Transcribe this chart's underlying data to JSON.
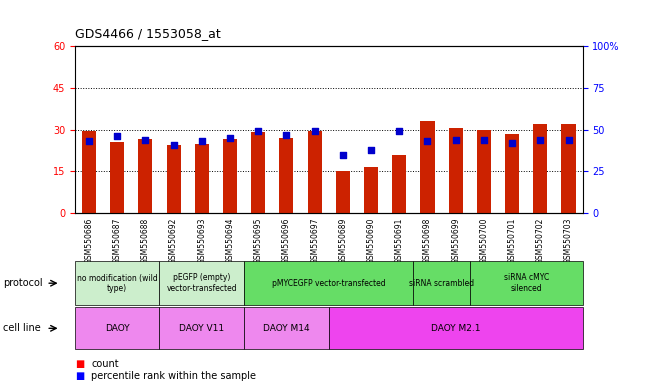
{
  "title": "GDS4466 / 1553058_at",
  "samples": [
    "GSM550686",
    "GSM550687",
    "GSM550688",
    "GSM550692",
    "GSM550693",
    "GSM550694",
    "GSM550695",
    "GSM550696",
    "GSM550697",
    "GSM550689",
    "GSM550690",
    "GSM550691",
    "GSM550698",
    "GSM550699",
    "GSM550700",
    "GSM550701",
    "GSM550702",
    "GSM550703"
  ],
  "counts": [
    29.5,
    25.5,
    26.5,
    24.5,
    25.0,
    26.5,
    29.0,
    27.0,
    29.5,
    15.0,
    16.5,
    21.0,
    33.0,
    30.5,
    30.0,
    28.5,
    32.0,
    32.0
  ],
  "percentiles": [
    43,
    46,
    44,
    41,
    43,
    45,
    49,
    47,
    49,
    35,
    38,
    49,
    43,
    44,
    44,
    42,
    44,
    44
  ],
  "bar_color": "#cc2200",
  "dot_color": "#0000cc",
  "ylim_left": [
    0,
    60
  ],
  "ylim_right": [
    0,
    100
  ],
  "yticks_left": [
    0,
    15,
    30,
    45,
    60
  ],
  "yticks_right": [
    0,
    25,
    50,
    75,
    100
  ],
  "ytick_labels_left": [
    "0",
    "15",
    "30",
    "45",
    "60"
  ],
  "ytick_labels_right": [
    "0",
    "25",
    "50",
    "75",
    "100%"
  ],
  "protocols": [
    {
      "label": "no modification (wild\ntype)",
      "start": 0,
      "end": 3,
      "color": "#cceecc"
    },
    {
      "label": "pEGFP (empty)\nvector-transfected",
      "start": 3,
      "end": 6,
      "color": "#cceecc"
    },
    {
      "label": "pMYCEGFP vector-transfected",
      "start": 6,
      "end": 12,
      "color": "#66dd66"
    },
    {
      "label": "siRNA scrambled",
      "start": 12,
      "end": 14,
      "color": "#66dd66"
    },
    {
      "label": "siRNA cMYC\nsilenced",
      "start": 14,
      "end": 18,
      "color": "#66dd66"
    }
  ],
  "cell_lines": [
    {
      "label": "DAOY",
      "start": 0,
      "end": 3,
      "color": "#ee88ee"
    },
    {
      "label": "DAOY V11",
      "start": 3,
      "end": 6,
      "color": "#ee88ee"
    },
    {
      "label": "DAOY M14",
      "start": 6,
      "end": 9,
      "color": "#ee88ee"
    },
    {
      "label": "DAOY M2.1",
      "start": 9,
      "end": 18,
      "color": "#ee44ee"
    }
  ],
  "legend_count_label": "count",
  "legend_pct_label": "percentile rank within the sample",
  "bg_color": "#ffffff",
  "axis_bg": "#ffffff",
  "xtick_bg": "#cccccc"
}
